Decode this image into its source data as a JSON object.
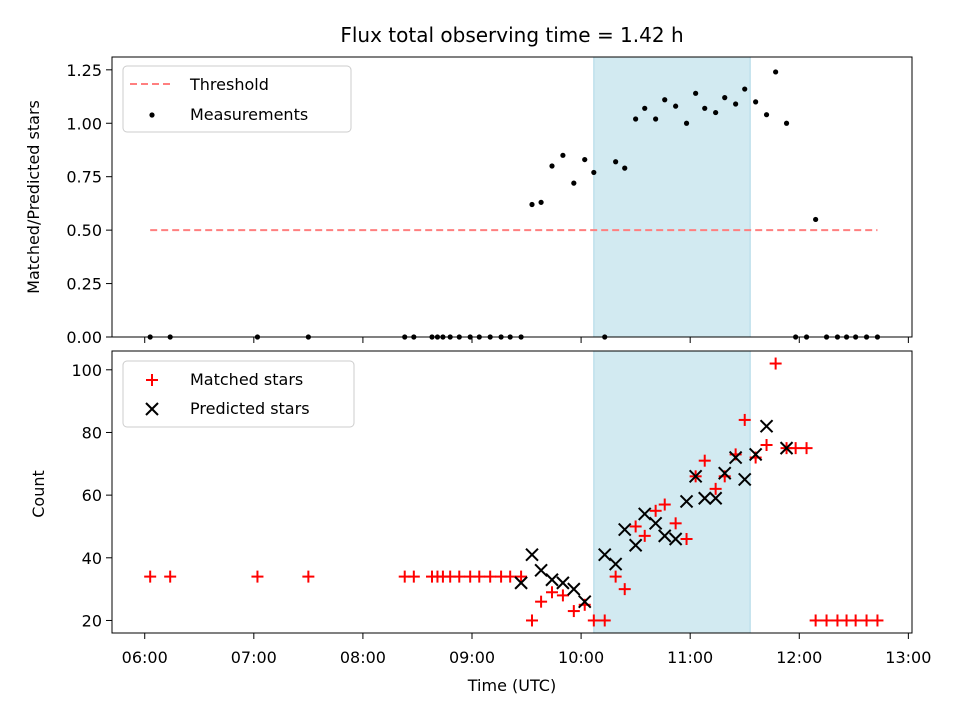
{
  "chart_data": [
    {
      "type": "scatter",
      "title": "Flux total observing time = 1.42 h",
      "xlabel": "",
      "ylabel": "Matched/Predicted stars",
      "x_unit": "hours UTC",
      "xlim": [
        "05:42",
        "13:02"
      ],
      "ylim": [
        0,
        1.31
      ],
      "yticks": [
        0.0,
        0.25,
        0.5,
        0.75,
        1.0,
        1.25
      ],
      "ytick_labels": [
        "0.00",
        "0.25",
        "0.50",
        "0.75",
        "1.00",
        "1.25"
      ],
      "xticks": [
        "06:00",
        "07:00",
        "08:00",
        "09:00",
        "10:00",
        "11:00",
        "12:00",
        "13:00"
      ],
      "grid": false,
      "legend_placement": "top-left",
      "observing_window": [
        "10:07",
        "11:33"
      ],
      "series": [
        {
          "name": "Threshold",
          "style": "dashed-line",
          "color": "#ff7f7f",
          "x": [
            "06:03",
            "12:43"
          ],
          "y": [
            0.5,
            0.5
          ]
        },
        {
          "name": "Measurements",
          "style": "dot",
          "color": "#000000",
          "x": [
            "06:03",
            "06:14",
            "07:02",
            "07:30",
            "08:23",
            "08:28",
            "08:38",
            "08:41",
            "08:44",
            "08:48",
            "08:53",
            "08:59",
            "09:04",
            "09:10",
            "09:16",
            "09:21",
            "09:27",
            "09:33",
            "09:38",
            "09:44",
            "09:50",
            "09:56",
            "10:02",
            "10:07",
            "10:13",
            "10:19",
            "10:24",
            "10:30",
            "10:35",
            "10:41",
            "10:46",
            "10:52",
            "10:58",
            "11:03",
            "11:08",
            "11:14",
            "11:19",
            "11:25",
            "11:30",
            "11:36",
            "11:42",
            "11:47",
            "11:53",
            "11:58",
            "12:04",
            "12:09",
            "12:15",
            "12:21",
            "12:26",
            "12:31",
            "12:37",
            "12:43"
          ],
          "y": [
            0.0,
            0.0,
            0.0,
            0.0,
            0.0,
            0.0,
            0.0,
            0.0,
            0.0,
            0.0,
            0.0,
            0.0,
            0.0,
            0.0,
            0.0,
            0.0,
            0.0,
            0.62,
            0.63,
            0.8,
            0.85,
            0.72,
            0.83,
            0.77,
            0.0,
            0.82,
            0.79,
            1.02,
            1.07,
            1.02,
            1.11,
            1.08,
            1.0,
            1.14,
            1.07,
            1.05,
            1.12,
            1.09,
            1.16,
            1.1,
            1.04,
            1.24,
            1.0,
            0.0,
            0.0,
            0.55,
            0.0,
            0.0,
            0.0,
            0.0,
            0.0,
            0.0
          ]
        }
      ]
    },
    {
      "type": "scatter",
      "title": "",
      "xlabel": "Time (UTC)",
      "ylabel": "Count",
      "x_unit": "hours UTC",
      "xlim": [
        "05:42",
        "13:02"
      ],
      "ylim": [
        16,
        106
      ],
      "yticks": [
        20,
        40,
        60,
        80,
        100
      ],
      "ytick_labels": [
        "20",
        "40",
        "60",
        "80",
        "100"
      ],
      "xticks": [
        "06:00",
        "07:00",
        "08:00",
        "09:00",
        "10:00",
        "11:00",
        "12:00",
        "13:00"
      ],
      "grid": false,
      "legend_placement": "top-left",
      "observing_window": [
        "10:07",
        "11:33"
      ],
      "series": [
        {
          "name": "Matched stars",
          "marker": "plus",
          "color": "#ff0000",
          "x": [
            "06:03",
            "06:14",
            "07:02",
            "07:30",
            "08:23",
            "08:28",
            "08:38",
            "08:41",
            "08:44",
            "08:48",
            "08:53",
            "08:59",
            "09:04",
            "09:10",
            "09:16",
            "09:21",
            "09:27",
            "09:33",
            "09:38",
            "09:44",
            "09:50",
            "09:56",
            "10:02",
            "10:07",
            "10:13",
            "10:19",
            "10:24",
            "10:30",
            "10:35",
            "10:41",
            "10:46",
            "10:52",
            "10:58",
            "11:03",
            "11:08",
            "11:14",
            "11:19",
            "11:25",
            "11:30",
            "11:36",
            "11:42",
            "11:47",
            "11:53",
            "11:58",
            "12:04",
            "12:09",
            "12:15",
            "12:21",
            "12:26",
            "12:31",
            "12:37",
            "12:43"
          ],
          "y": [
            34,
            34,
            34,
            34,
            34,
            34,
            34,
            34,
            34,
            34,
            34,
            34,
            34,
            34,
            34,
            34,
            34,
            20,
            26,
            29,
            28,
            23,
            25,
            20,
            20,
            34,
            30,
            50,
            47,
            55,
            57,
            51,
            46,
            66,
            71,
            62,
            66,
            73,
            84,
            72,
            76,
            102,
            75,
            75,
            75,
            20,
            20,
            20,
            20,
            20,
            20,
            20
          ]
        },
        {
          "name": "Predicted stars",
          "marker": "x",
          "color": "#000000",
          "x": [
            "09:27",
            "09:33",
            "09:38",
            "09:44",
            "09:50",
            "09:56",
            "10:02",
            "10:13",
            "10:19",
            "10:24",
            "10:30",
            "10:35",
            "10:41",
            "10:46",
            "10:52",
            "10:58",
            "11:03",
            "11:08",
            "11:14",
            "11:19",
            "11:25",
            "11:30",
            "11:36",
            "11:42",
            "11:53"
          ],
          "y": [
            32,
            41,
            36,
            33,
            32,
            30,
            26,
            41,
            38,
            49,
            44,
            54,
            51,
            47,
            46,
            58,
            66,
            59,
            59,
            67,
            72,
            65,
            73,
            82,
            75
          ]
        }
      ]
    }
  ]
}
